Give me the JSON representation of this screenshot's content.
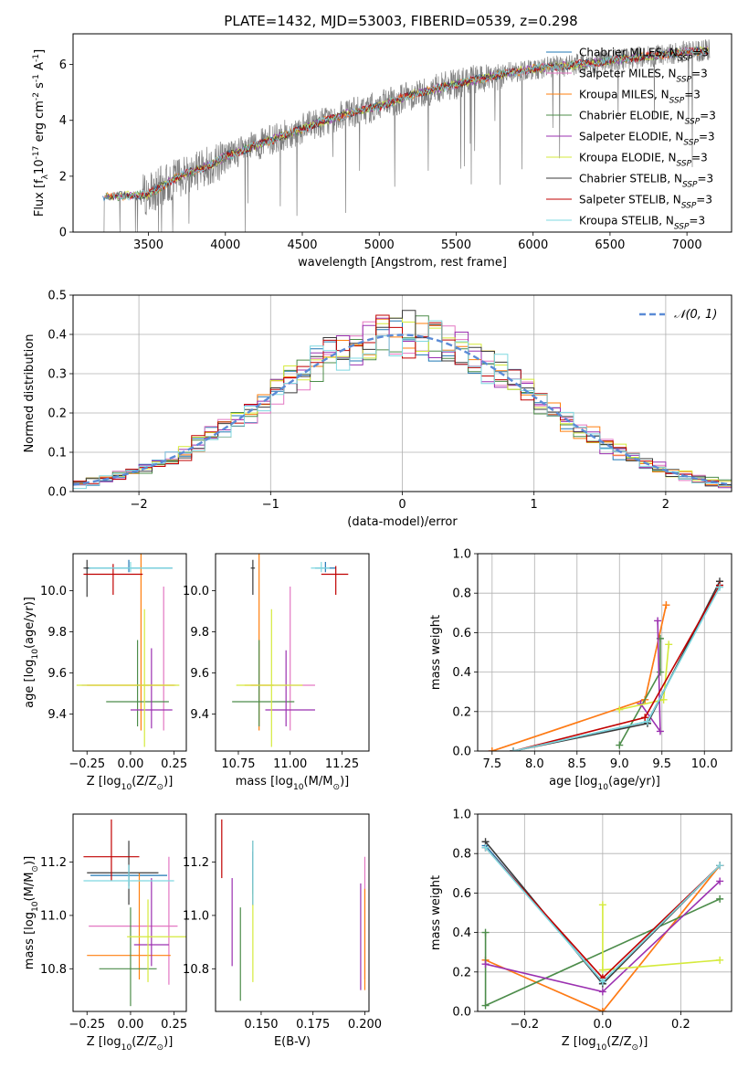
{
  "figure": {
    "title": "PLATE=1432, MJD=53003, FIBERID=0539, z=0.298"
  },
  "models": [
    {
      "label": "Chabrier MILES, N$_{SSP}$=3",
      "base": "Chabrier MILES, N",
      "sub": "SSP",
      "suffix": "=3",
      "color": "#1f77b4"
    },
    {
      "label": "Salpeter MILES, N$_{SSP}$=3",
      "base": "Salpeter MILES, N",
      "sub": "SSP",
      "suffix": "=3",
      "color": "#e377c2"
    },
    {
      "label": "Kroupa MILES, N$_{SSP}$=3",
      "base": "Kroupa MILES, N",
      "sub": "SSP",
      "suffix": "=3",
      "color": "#ff7f0e"
    },
    {
      "label": "Chabrier ELODIE, N$_{SSP}$=3",
      "base": "Chabrier ELODIE, N",
      "sub": "SSP",
      "suffix": "=3",
      "color": "#4c8c4a"
    },
    {
      "label": "Salpeter ELODIE, N$_{SSP}$=3",
      "base": "Salpeter ELODIE, N",
      "sub": "SSP",
      "suffix": "=3",
      "color": "#9b30b0"
    },
    {
      "label": "Kroupa ELODIE, N$_{SSP}$=3",
      "base": "Kroupa ELODIE, N",
      "sub": "SSP",
      "suffix": "=3",
      "color": "#d5ea3c"
    },
    {
      "label": "Chabrier STELIB, N$_{SSP}$=3",
      "base": "Chabrier STELIB, N",
      "sub": "SSP",
      "suffix": "=3",
      "color": "#3a3a3a"
    },
    {
      "label": "Salpeter STELIB, N$_{SSP}$=3",
      "base": "Salpeter STELIB, N",
      "sub": "SSP",
      "suffix": "=3",
      "color": "#c00000"
    },
    {
      "label": "Kroupa STELIB, N$_{SSP}$=3",
      "base": "Kroupa STELIB, N",
      "sub": "SSP",
      "suffix": "=3",
      "color": "#7fd8e0"
    }
  ],
  "chart_data": [
    {
      "id": "spectrum",
      "type": "line",
      "xlabel": "wavelength [Angstrom, rest frame]",
      "ylabel": "Flux [f$_\\lambda$10$^{-17}$ erg cm$^{-2}$ s$^{-1}$ A$^{-1}$]",
      "xlim": [
        3010,
        7290
      ],
      "ylim": [
        0,
        7.1
      ],
      "xticks": [
        3500,
        4000,
        4500,
        5000,
        5500,
        6000,
        6500,
        7000
      ],
      "yticks": [
        0,
        2,
        4,
        6
      ],
      "data_color": "#808080",
      "data_range": [
        3200,
        7150
      ],
      "model_range": [
        3200,
        7140
      ],
      "continuum": [
        [
          3200,
          1.25
        ],
        [
          3500,
          1.35
        ],
        [
          3700,
          2.0
        ],
        [
          3900,
          2.4
        ],
        [
          4000,
          2.7
        ],
        [
          4200,
          3.1
        ],
        [
          4400,
          3.5
        ],
        [
          4600,
          3.9
        ],
        [
          4800,
          4.25
        ],
        [
          5000,
          4.5
        ],
        [
          5200,
          4.9
        ],
        [
          5500,
          5.3
        ],
        [
          5800,
          5.65
        ],
        [
          6000,
          5.85
        ],
        [
          6300,
          6.0
        ],
        [
          6600,
          6.2
        ],
        [
          7000,
          6.45
        ],
        [
          7140,
          6.5
        ]
      ],
      "legend_position": "upper right"
    },
    {
      "id": "residuals",
      "type": "step",
      "xlabel": "(data-model)/error",
      "ylabel": "Normed distribution",
      "xlim": [
        -2.5,
        2.5
      ],
      "ylim": [
        0,
        0.5
      ],
      "xticks": [
        -2,
        -1,
        0,
        1,
        2
      ],
      "yticks": [
        0.0,
        0.1,
        0.2,
        0.3,
        0.4,
        0.5
      ],
      "grid": true,
      "bin_width": 0.1,
      "reference_curve": {
        "label": "$\\mathcal{N}(0,1)$",
        "label_text": "𝒩(0, 1)",
        "color": "#5b8bd6",
        "mean": 0,
        "sigma": 1
      },
      "legend_position": "upper right"
    },
    {
      "id": "age_vs_Z",
      "type": "errorbar",
      "xlabel": "Z [log$_{10}$(Z/Z$_\\odot$)]",
      "ylabel": "age  [log$_{10}$(age/yr)]",
      "xlim": [
        -0.33,
        0.32
      ],
      "ylim": [
        9.22,
        10.18
      ],
      "xticks": [
        -0.25,
        0.0,
        0.25
      ],
      "yticks": [
        9.4,
        9.6,
        9.8,
        10.0
      ],
      "points": [
        {
          "model": 0,
          "x": -0.01,
          "y": 10.11,
          "xerr": [
            0.25,
            0.25
          ],
          "yerr": [
            0.02,
            0.04
          ]
        },
        {
          "model": 1,
          "x": 0.19,
          "y": 9.54,
          "xerr": [
            0.47,
            0.07
          ],
          "yerr": [
            0.22,
            0.48
          ]
        },
        {
          "model": 2,
          "x": 0.06,
          "y": 9.54,
          "xerr": [
            0.31,
            0.19
          ],
          "yerr": [
            0.22,
            0.66
          ]
        },
        {
          "model": 3,
          "x": 0.04,
          "y": 9.46,
          "xerr": [
            0.18,
            0.18
          ],
          "yerr": [
            0.12,
            0.3
          ]
        },
        {
          "model": 4,
          "x": 0.12,
          "y": 9.42,
          "xerr": [
            0.12,
            0.12
          ],
          "yerr": [
            0.09,
            0.3
          ]
        },
        {
          "model": 5,
          "x": 0.08,
          "y": 9.54,
          "xerr": [
            0.39,
            0.2
          ],
          "yerr": [
            0.3,
            0.37
          ]
        },
        {
          "model": 6,
          "x": -0.25,
          "y": 10.11,
          "xerr": [
            0.02,
            0.02
          ],
          "yerr": [
            0.14,
            0.04
          ]
        },
        {
          "model": 7,
          "x": -0.1,
          "y": 10.08,
          "xerr": [
            0.17,
            0.17
          ],
          "yerr": [
            0.1,
            0.05
          ]
        },
        {
          "model": 8,
          "x": 0.0,
          "y": 10.11,
          "xerr": [
            0.24,
            0.24
          ],
          "yerr": [
            0.02,
            0.03
          ]
        }
      ]
    },
    {
      "id": "age_vs_mass",
      "type": "errorbar",
      "xlabel": "mass [log$_{10}$(M/M$_\\odot$)]",
      "ylabel": "",
      "xlim": [
        10.64,
        11.38
      ],
      "ylim": [
        9.22,
        10.18
      ],
      "xticks": [
        10.75,
        11.0,
        11.25
      ],
      "yticks": [
        9.4,
        9.6,
        9.8,
        10.0
      ],
      "points": [
        {
          "model": 0,
          "x": 11.17,
          "y": 10.11,
          "xerr": [
            0.05,
            0.05
          ],
          "yerr": [
            0.02,
            0.03
          ]
        },
        {
          "model": 1,
          "x": 11.0,
          "y": 9.54,
          "xerr": [
            0.19,
            0.12
          ],
          "yerr": [
            0.22,
            0.48
          ]
        },
        {
          "model": 2,
          "x": 10.85,
          "y": 9.54,
          "xerr": [
            0.07,
            0.07
          ],
          "yerr": [
            0.22,
            0.65
          ]
        },
        {
          "model": 3,
          "x": 10.85,
          "y": 9.46,
          "xerr": [
            0.13,
            0.17
          ],
          "yerr": [
            0.12,
            0.3
          ]
        },
        {
          "model": 4,
          "x": 10.98,
          "y": 9.42,
          "xerr": [
            0.1,
            0.14
          ],
          "yerr": [
            0.08,
            0.29
          ]
        },
        {
          "model": 5,
          "x": 10.91,
          "y": 9.54,
          "xerr": [
            0.17,
            0.15
          ],
          "yerr": [
            0.3,
            0.37
          ]
        },
        {
          "model": 6,
          "x": 10.82,
          "y": 10.11,
          "xerr": [
            0.01,
            0.01
          ],
          "yerr": [
            0.13,
            0.04
          ]
        },
        {
          "model": 7,
          "x": 11.22,
          "y": 10.08,
          "xerr": [
            0.07,
            0.06
          ],
          "yerr": [
            0.1,
            0.04
          ]
        },
        {
          "model": 8,
          "x": 11.15,
          "y": 10.11,
          "xerr": [
            0.05,
            0.04
          ],
          "yerr": [
            0.02,
            0.03
          ]
        }
      ]
    },
    {
      "id": "weight_vs_age",
      "type": "line",
      "xlabel": "age  [log$_{10}$(age/yr)]",
      "ylabel": "mass weight",
      "xlim": [
        7.33,
        10.32
      ],
      "ylim": [
        0,
        1
      ],
      "xticks": [
        7.5,
        8.0,
        8.5,
        9.0,
        9.5,
        10.0
      ],
      "yticks": [
        0.0,
        0.2,
        0.4,
        0.6,
        0.8,
        1.0
      ],
      "grid": true,
      "series": [
        {
          "model": 0,
          "x": [
            7.75,
            9.33,
            10.18
          ],
          "y": [
            0.0,
            0.15,
            0.84
          ]
        },
        {
          "model": 1,
          "x": [
            7.5,
            9.3,
            9.55
          ],
          "y": [
            0.0,
            0.26,
            0.74
          ]
        },
        {
          "model": 2,
          "x": [
            7.5,
            9.3,
            9.55
          ],
          "y": [
            0.0,
            0.26,
            0.74
          ]
        },
        {
          "model": 3,
          "x": [
            9.0,
            9.48,
            9.48
          ],
          "y": [
            0.03,
            0.4,
            0.57
          ]
        },
        {
          "model": 4,
          "x": [
            9.25,
            9.48,
            9.45
          ],
          "y": [
            0.24,
            0.1,
            0.66
          ]
        },
        {
          "model": 5,
          "x": [
            9.0,
            9.52,
            9.58
          ],
          "y": [
            0.21,
            0.26,
            0.54
          ]
        },
        {
          "model": 6,
          "x": [
            7.75,
            9.33,
            10.18
          ],
          "y": [
            0.0,
            0.14,
            0.86
          ]
        },
        {
          "model": 7,
          "x": [
            7.75,
            9.3,
            10.18
          ],
          "y": [
            0.0,
            0.17,
            0.84
          ]
        },
        {
          "model": 8,
          "x": [
            7.75,
            9.33,
            10.18
          ],
          "y": [
            0.0,
            0.15,
            0.83
          ]
        }
      ]
    },
    {
      "id": "mass_vs_Z",
      "type": "errorbar",
      "xlabel": "Z [log$_{10}$(Z/Z$_\\odot$)]",
      "ylabel": "mass [log$_{10}$(M/M$_\\odot$)]",
      "xlim": [
        -0.33,
        0.32
      ],
      "ylim": [
        10.64,
        11.38
      ],
      "xticks": [
        -0.25,
        0.0,
        0.25
      ],
      "yticks": [
        10.8,
        11.0,
        11.2
      ],
      "points": [
        {
          "model": 0,
          "x": -0.01,
          "y": 11.15,
          "xerr": [
            0.22,
            0.22
          ],
          "yerr": [
            0.04,
            0.04
          ]
        },
        {
          "model": 1,
          "x": 0.22,
          "y": 10.96,
          "xerr": [
            0.46,
            0.05
          ],
          "yerr": [
            0.22,
            0.26
          ]
        },
        {
          "model": 2,
          "x": 0.05,
          "y": 10.85,
          "xerr": [
            0.3,
            0.18
          ],
          "yerr": [
            0.09,
            0.31
          ]
        },
        {
          "model": 3,
          "x": 0.0,
          "y": 10.8,
          "xerr": [
            0.18,
            0.15
          ],
          "yerr": [
            0.14,
            0.23
          ]
        },
        {
          "model": 4,
          "x": 0.12,
          "y": 10.89,
          "xerr": [
            0.1,
            0.1
          ],
          "yerr": [
            0.08,
            0.25
          ]
        },
        {
          "model": 5,
          "x": 0.1,
          "y": 10.92,
          "xerr": [
            0.12,
            0.22
          ],
          "yerr": [
            0.17,
            0.14
          ]
        },
        {
          "model": 6,
          "x": -0.01,
          "y": 11.16,
          "xerr": [
            0.24,
            0.17
          ],
          "yerr": [
            0.12,
            0.12
          ]
        },
        {
          "model": 7,
          "x": -0.11,
          "y": 11.22,
          "xerr": [
            0.16,
            0.16
          ],
          "yerr": [
            0.09,
            0.14
          ]
        },
        {
          "model": 8,
          "x": -0.01,
          "y": 11.13,
          "xerr": [
            0.26,
            0.26
          ],
          "yerr": [
            0.03,
            0.06
          ]
        }
      ]
    },
    {
      "id": "mass_vs_ebv",
      "type": "errorbar",
      "xlabel": "E(B-V)",
      "ylabel": "",
      "xlim": [
        0.128,
        0.202
      ],
      "ylim": [
        10.64,
        11.38
      ],
      "xticks": [
        0.15,
        0.175,
        0.2
      ],
      "yticks": [
        10.8,
        11.0,
        11.2
      ],
      "points": [
        {
          "model": 0,
          "x": 0.146,
          "y": 11.16,
          "xerr": [
            0,
            0
          ],
          "yerr": [
            0.08,
            0.08
          ]
        },
        {
          "model": 1,
          "x": 0.2,
          "y": 11.01,
          "xerr": [
            0,
            0
          ],
          "yerr": [
            0.25,
            0.21
          ]
        },
        {
          "model": 2,
          "x": 0.2,
          "y": 10.89,
          "xerr": [
            0,
            0
          ],
          "yerr": [
            0.17,
            0.21
          ]
        },
        {
          "model": 3,
          "x": 0.14,
          "y": 10.85,
          "xerr": [
            0,
            0
          ],
          "yerr": [
            0.17,
            0.18
          ]
        },
        {
          "model": 4,
          "x": 0.136,
          "y": 10.98,
          "xerr": [
            0,
            0
          ],
          "yerr": [
            0.17,
            0.16
          ]
        },
        {
          "model": 5,
          "x": 0.146,
          "y": 10.9,
          "xerr": [
            0,
            0
          ],
          "yerr": [
            0.15,
            0.22
          ]
        },
        {
          "model": 6,
          "x": 0.146,
          "y": 11.15,
          "xerr": [
            0,
            0
          ],
          "yerr": [
            0.11,
            0.13
          ]
        },
        {
          "model": 7,
          "x": 0.131,
          "y": 11.25,
          "xerr": [
            0,
            0
          ],
          "yerr": [
            0.11,
            0.11
          ]
        },
        {
          "model": 8,
          "x": 0.146,
          "y": 11.13,
          "xerr": [
            0,
            0
          ],
          "yerr": [
            0.09,
            0.15
          ]
        },
        {
          "model": 4,
          "x": 0.198,
          "y": 10.92,
          "xerr": [
            0,
            0
          ],
          "yerr": [
            0.2,
            0.2
          ]
        }
      ]
    },
    {
      "id": "weight_vs_Z",
      "type": "line",
      "xlabel": "Z [log$_{10}$(Z/Z$_\\odot$)]",
      "ylabel": "mass weight",
      "xlim": [
        -0.32,
        0.33
      ],
      "ylim": [
        0,
        1
      ],
      "xticks": [
        -0.2,
        0.0,
        0.2
      ],
      "yticks": [
        0.0,
        0.2,
        0.4,
        0.6,
        0.8,
        1.0
      ],
      "grid": true,
      "series": [
        {
          "model": 0,
          "x": [
            -0.3,
            0.0,
            0.3
          ],
          "y": [
            0.84,
            0.15,
            0.74
          ]
        },
        {
          "model": 1,
          "x": [
            -0.3,
            0.0,
            0.3
          ],
          "y": [
            0.26,
            0.0,
            0.74
          ]
        },
        {
          "model": 2,
          "x": [
            -0.3,
            0.0,
            0.3
          ],
          "y": [
            0.26,
            0.0,
            0.74
          ]
        },
        {
          "model": 3,
          "x": [
            -0.3,
            -0.3,
            0.3
          ],
          "y": [
            0.4,
            0.03,
            0.57
          ]
        },
        {
          "model": 4,
          "x": [
            -0.3,
            0.0,
            0.3
          ],
          "y": [
            0.24,
            0.1,
            0.66
          ]
        },
        {
          "model": 5,
          "x": [
            0.0,
            0.0,
            0.3
          ],
          "y": [
            0.54,
            0.21,
            0.26
          ]
        },
        {
          "model": 6,
          "x": [
            -0.3,
            0.0,
            0.3
          ],
          "y": [
            0.86,
            0.14,
            0.74
          ]
        },
        {
          "model": 7,
          "x": [
            -0.3,
            0.0,
            0.3
          ],
          "y": [
            0.83,
            0.17,
            0.74
          ]
        },
        {
          "model": 8,
          "x": [
            -0.3,
            0.0,
            0.3
          ],
          "y": [
            0.83,
            0.15,
            0.74
          ]
        }
      ]
    }
  ]
}
